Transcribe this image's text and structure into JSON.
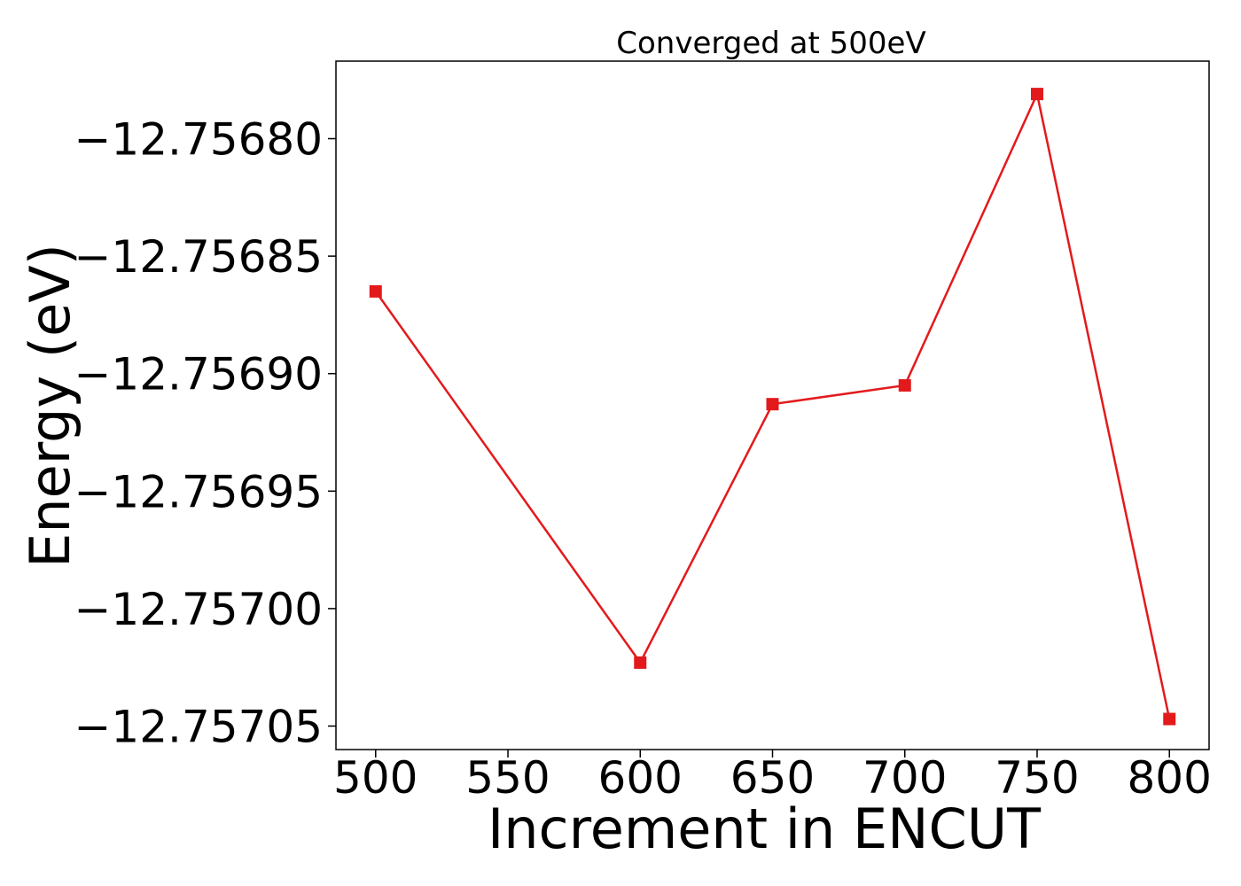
{
  "chart_data": {
    "type": "line",
    "title": "Converged at 500eV",
    "xlabel": "Increment in ENCUT",
    "ylabel": "Energy (eV)",
    "x": [
      500,
      600,
      650,
      700,
      750,
      800
    ],
    "series": [
      {
        "values": [
          -12.756865,
          -12.757023,
          -12.756913,
          -12.756905,
          -12.756781,
          -12.757047
        ],
        "color": "#e31a1c",
        "marker": "square"
      }
    ],
    "xlim": [
      485,
      815
    ],
    "ylim": [
      -12.75706,
      -12.756767
    ],
    "xticks": [
      500,
      550,
      600,
      650,
      700,
      750,
      800
    ],
    "xtick_labels": [
      "500",
      "550",
      "600",
      "650",
      "700",
      "750",
      "800"
    ],
    "yticks": [
      -12.7568,
      -12.75685,
      -12.7569,
      -12.75695,
      -12.757,
      -12.75705
    ],
    "ytick_labels": [
      "−12.75680",
      "−12.75685",
      "−12.75690",
      "−12.75695",
      "−12.75700",
      "−12.75705"
    ],
    "grid": false,
    "legend": "none"
  }
}
